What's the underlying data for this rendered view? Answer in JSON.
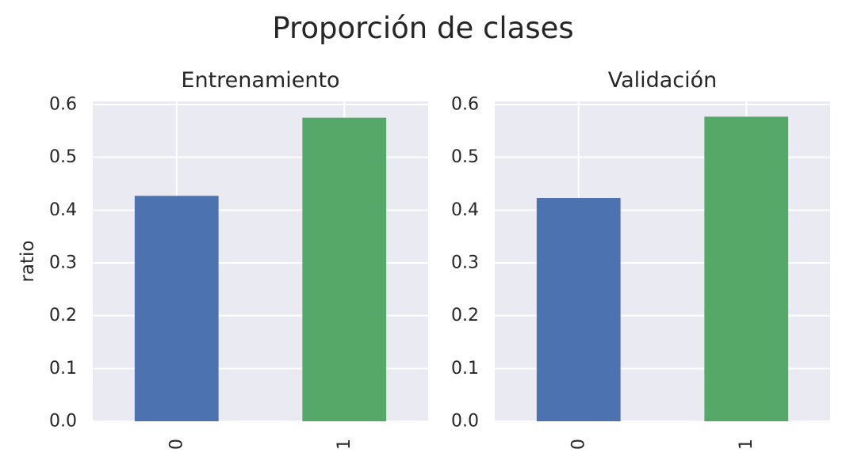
{
  "figure": {
    "title": "Proporción de clases",
    "ylabel": "ratio"
  },
  "chart_data": [
    {
      "type": "bar",
      "title": "Entrenamiento",
      "categories": [
        "0",
        "1"
      ],
      "values": [
        0.427,
        0.575
      ],
      "colors": [
        "#4c72b0",
        "#55a868"
      ],
      "xlabel": "",
      "ylabel": "ratio",
      "ylim": [
        0,
        0.606
      ],
      "yticks": [
        "0.0",
        "0.1",
        "0.2",
        "0.3",
        "0.4",
        "0.5",
        "0.6"
      ],
      "ytick_values": [
        0,
        0.1,
        0.2,
        0.3,
        0.4,
        0.5,
        0.6
      ],
      "grid": true,
      "background": "#eaeaf2"
    },
    {
      "type": "bar",
      "title": "Validación",
      "categories": [
        "0",
        "1"
      ],
      "values": [
        0.423,
        0.577
      ],
      "colors": [
        "#4c72b0",
        "#55a868"
      ],
      "xlabel": "",
      "ylabel": "",
      "ylim": [
        0,
        0.606
      ],
      "yticks": [
        "0.0",
        "0.1",
        "0.2",
        "0.3",
        "0.4",
        "0.5",
        "0.6"
      ],
      "ytick_values": [
        0,
        0.1,
        0.2,
        0.3,
        0.4,
        0.5,
        0.6
      ],
      "grid": true,
      "background": "#eaeaf2"
    }
  ]
}
